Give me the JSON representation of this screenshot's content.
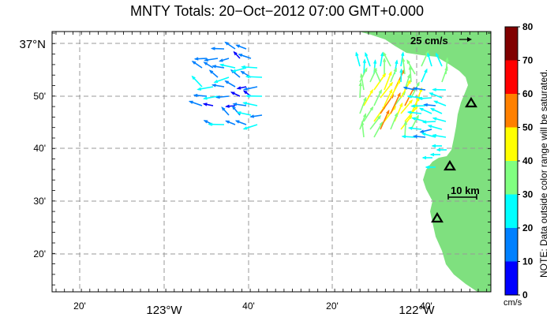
{
  "title": "MNTY Totals: 20−Oct−2012 07:00 GMT+0.000",
  "axes": {
    "x_ticks": [
      {
        "label": "20'",
        "big": false
      },
      {
        "label": "123°W",
        "big": true
      },
      {
        "label": "40'",
        "big": false
      },
      {
        "label": "20'",
        "big": false
      },
      {
        "label": "122°W",
        "big": true
      },
      {
        "label": "40'",
        "big": false
      }
    ],
    "y_ticks": [
      {
        "label": "37°N",
        "big": true
      },
      {
        "label": "50'",
        "big": false
      },
      {
        "label": "40'",
        "big": false
      },
      {
        "label": "30'",
        "big": false
      },
      {
        "label": "20'",
        "big": false
      }
    ]
  },
  "reference_vector_label": "25 cm/s",
  "scale_bar_label": "10 km",
  "colorbar": {
    "ticks": [
      "80",
      "70",
      "60",
      "50",
      "40",
      "30",
      "20",
      "10",
      "0"
    ],
    "colors": [
      "#800000",
      "#ff0000",
      "#ff8000",
      "#ffff00",
      "#80ff80",
      "#00ffff",
      "#0080ff",
      "#0000ff"
    ],
    "note": "NOTE: Data outside color range will be saturated.",
    "units": "cm/s"
  },
  "land_color": "#7fe07f",
  "stations": [
    "site-north",
    "site-central",
    "site-south"
  ]
}
